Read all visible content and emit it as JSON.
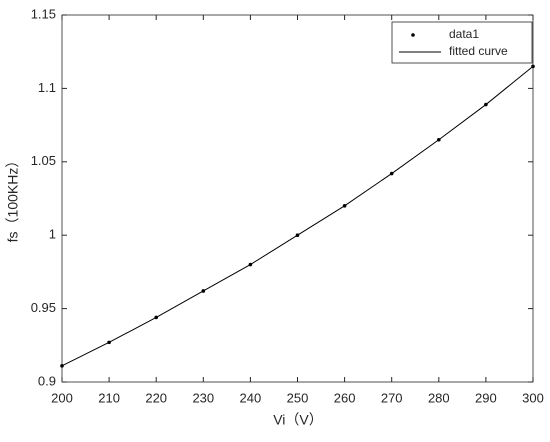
{
  "chart_data": {
    "type": "line",
    "x": [
      200,
      210,
      220,
      230,
      240,
      250,
      260,
      270,
      280,
      290,
      300
    ],
    "series": [
      {
        "name": "data1",
        "color": "#000000",
        "style": "markers",
        "values": [
          0.911,
          0.927,
          0.944,
          0.962,
          0.98,
          1.0,
          1.02,
          1.042,
          1.065,
          1.089,
          1.115
        ]
      },
      {
        "name": "fitted curve",
        "color": "#000000",
        "style": "line",
        "values": [
          0.911,
          0.927,
          0.944,
          0.962,
          0.98,
          1.0,
          1.02,
          1.042,
          1.065,
          1.089,
          1.115
        ]
      }
    ],
    "xlabel": "Vi（V）",
    "ylabel": "fs（100KHz）",
    "xlim": [
      200,
      300
    ],
    "xticks": [
      200,
      210,
      220,
      230,
      240,
      250,
      260,
      270,
      280,
      290,
      300
    ],
    "ylim": [
      0.9,
      1.15
    ],
    "yticks": [
      0.9,
      0.95,
      1,
      1.05,
      1.1,
      1.15
    ],
    "grid": false,
    "legend": "northeast"
  }
}
